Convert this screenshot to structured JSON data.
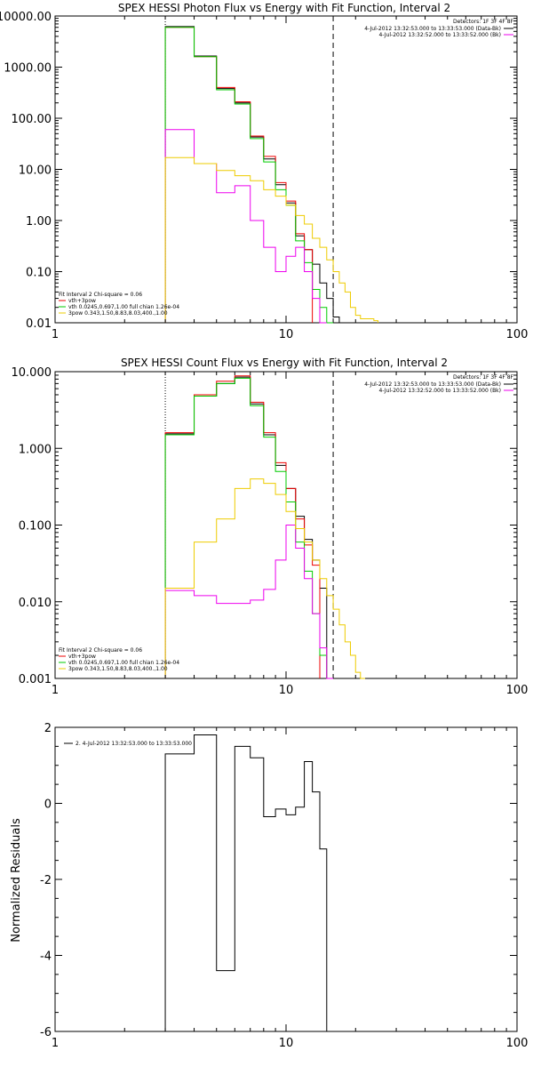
{
  "chart_data": [
    {
      "type": "line",
      "title": "SPEX HESSI Photon Flux vs Energy with Fit Function, Interval 2",
      "xlabel": "",
      "ylabel": "",
      "x_scale": "log",
      "y_scale": "log",
      "xlim": [
        1,
        100
      ],
      "ylim": [
        0.01,
        10000
      ],
      "x_tick_labels": [
        "1",
        "10",
        "100"
      ],
      "y_ticks": [
        0.01,
        0.1,
        1,
        10,
        100,
        1000,
        10000
      ],
      "y_tick_labels": [
        "0.01",
        "0.10",
        "1.00",
        "10.00",
        "100.00",
        "1000.00",
        "10000.00"
      ],
      "ref_lines": [
        3.0,
        16.0
      ],
      "edges": [
        3,
        4,
        5,
        6,
        7,
        8,
        9,
        10,
        11,
        12,
        13,
        14,
        15,
        16,
        17,
        18,
        19,
        20,
        21,
        22,
        23,
        24,
        25
      ],
      "series": [
        {
          "color": "#000000",
          "values": [
            6200,
            1650,
            380,
            200,
            43,
            16,
            5.0,
            2.2,
            0.5,
            0.27,
            0.14,
            0.06,
            0.03,
            0.013
          ]
        },
        {
          "color": "#ee0000",
          "values": [
            6000,
            1600,
            400,
            210,
            45,
            18,
            5.5,
            2.4,
            0.55,
            0.27
          ]
        },
        {
          "color": "#00cc00",
          "values": [
            6000,
            1600,
            360,
            190,
            40,
            14,
            4.0,
            2.0,
            0.4,
            0.15,
            0.045,
            0.02,
            0.006
          ]
        },
        {
          "color": "#ee00ee",
          "values": [
            60,
            13,
            3.5,
            4.8,
            1.0,
            0.3,
            0.1,
            0.2,
            0.3,
            0.1,
            0.03,
            0.006
          ]
        },
        {
          "color": "#eecc00",
          "values": [
            17,
            13,
            9.5,
            7.5,
            6.0,
            4.0,
            3.0,
            2.0,
            1.25,
            0.85,
            0.45,
            0.3,
            0.17,
            0.1,
            0.06,
            0.04,
            0.02,
            0.014,
            0.012,
            0.012,
            0.012,
            0.011
          ]
        }
      ],
      "legend_right": {
        "header": "Detectors: 1F 3F 4F 8F",
        "entries": [
          {
            "text": "4-Jul-2012 13:32:53.000 to 13:33:53.000 (Data-Bk)",
            "color": "#000000"
          },
          {
            "text": "4-Jul-2012 13:32:52.000 to 13:33:52.000 (Bk)",
            "color": "#ee00ee"
          }
        ]
      },
      "legend_left": {
        "header": "Fit Interval 2   Chi-square = 0.06",
        "entries": [
          {
            "text": "vth+3pow",
            "color": "#ee0000"
          },
          {
            "text": "vth 0.0245,0.697,1.00  full chian 1.26e-04",
            "color": "#00cc00"
          },
          {
            "text": "3pow 0.343,1.50,8.83,8.03,400.,1.00",
            "color": "#eecc00"
          }
        ]
      }
    },
    {
      "type": "line",
      "title": "SPEX HESSI Count Flux vs Energy with Fit Function, Interval 2",
      "xlabel": "",
      "ylabel": "",
      "x_scale": "log",
      "y_scale": "log",
      "xlim": [
        1,
        100
      ],
      "ylim": [
        0.001,
        10
      ],
      "x_tick_labels": [
        "1",
        "10",
        "100"
      ],
      "y_ticks": [
        0.001,
        0.01,
        0.1,
        1,
        10
      ],
      "y_tick_labels": [
        "0.001",
        "0.010",
        "0.100",
        "1.000",
        "10.000"
      ],
      "ref_lines": [
        3.0,
        16.0
      ],
      "edges": [
        3,
        4,
        5,
        6,
        7,
        8,
        9,
        10,
        11,
        12,
        13,
        14,
        15,
        16,
        17,
        18,
        19,
        20,
        21,
        22,
        23,
        24,
        25
      ],
      "series": [
        {
          "color": "#000000",
          "values": [
            1.55,
            4.8,
            7.0,
            8.5,
            3.8,
            1.5,
            0.6,
            0.3,
            0.13,
            0.065,
            0.035,
            0.015
          ]
        },
        {
          "color": "#ee0000",
          "values": [
            1.6,
            5.0,
            7.5,
            8.8,
            4.0,
            1.6,
            0.65,
            0.3,
            0.12,
            0.055,
            0.03
          ]
        },
        {
          "color": "#00cc00",
          "values": [
            1.5,
            4.8,
            7.0,
            8.2,
            3.6,
            1.4,
            0.5,
            0.2,
            0.06,
            0.025,
            0.007,
            0.002
          ]
        },
        {
          "color": "#ee00ee",
          "values": [
            0.014,
            0.012,
            0.0095,
            0.0095,
            0.0105,
            0.0145,
            0.035,
            0.1,
            0.05,
            0.02,
            0.007,
            0.0025,
            0.0009
          ]
        },
        {
          "color": "#eecc00",
          "values": [
            0.015,
            0.06,
            0.12,
            0.3,
            0.4,
            0.35,
            0.25,
            0.15,
            0.09,
            0.06,
            0.035,
            0.02,
            0.012,
            0.008,
            0.005,
            0.003,
            0.002,
            0.0012,
            0.0008
          ]
        }
      ],
      "legend_right": {
        "header": "Detectors: 1F 3F 4F 8F",
        "entries": [
          {
            "text": "4-Jul-2012 13:32:53.000 to 13:33:53.000 (Data-Bk)",
            "color": "#000000"
          },
          {
            "text": "4-Jul-2012 13:32:52.000 to 13:33:52.000 (Bk)",
            "color": "#ee00ee"
          }
        ]
      },
      "legend_left": {
        "header": "Fit Interval 2   Chi-square = 0.06",
        "entries": [
          {
            "text": "vth+3pow",
            "color": "#ee0000"
          },
          {
            "text": "vth 0.0245,0.697,1.00  full chian 1.26e-04",
            "color": "#00cc00"
          },
          {
            "text": "3pow 0.343,1.50,8.83,8.03,400.,1.00",
            "color": "#eecc00"
          }
        ]
      }
    },
    {
      "type": "line",
      "title": "",
      "xlabel": "",
      "ylabel": "Normalized Residuals",
      "x_scale": "log",
      "y_scale": "linear",
      "xlim": [
        1,
        100
      ],
      "ylim": [
        -6,
        2
      ],
      "x_tick_labels": [
        "1",
        "10",
        "100"
      ],
      "y_ticks": [
        -6,
        -4,
        -2,
        0,
        2
      ],
      "y_tick_labels": [
        "-6",
        "-4",
        "-2",
        "0",
        "2"
      ],
      "edges": [
        3,
        4,
        5,
        6,
        7,
        8,
        9,
        10,
        11,
        12,
        13,
        14,
        15,
        16
      ],
      "series": [
        {
          "color": "#000000",
          "values": [
            1.3,
            1.8,
            -4.4,
            1.5,
            1.2,
            -0.35,
            -0.15,
            -0.3,
            -0.1,
            1.1,
            0.3,
            -1.2,
            -6
          ]
        }
      ],
      "legend_left": {
        "header": "",
        "entries": [
          {
            "text": "2.  4-Jul-2012 13:32:53.000 to 13:33:53.000",
            "color": "#000000"
          }
        ]
      }
    }
  ]
}
